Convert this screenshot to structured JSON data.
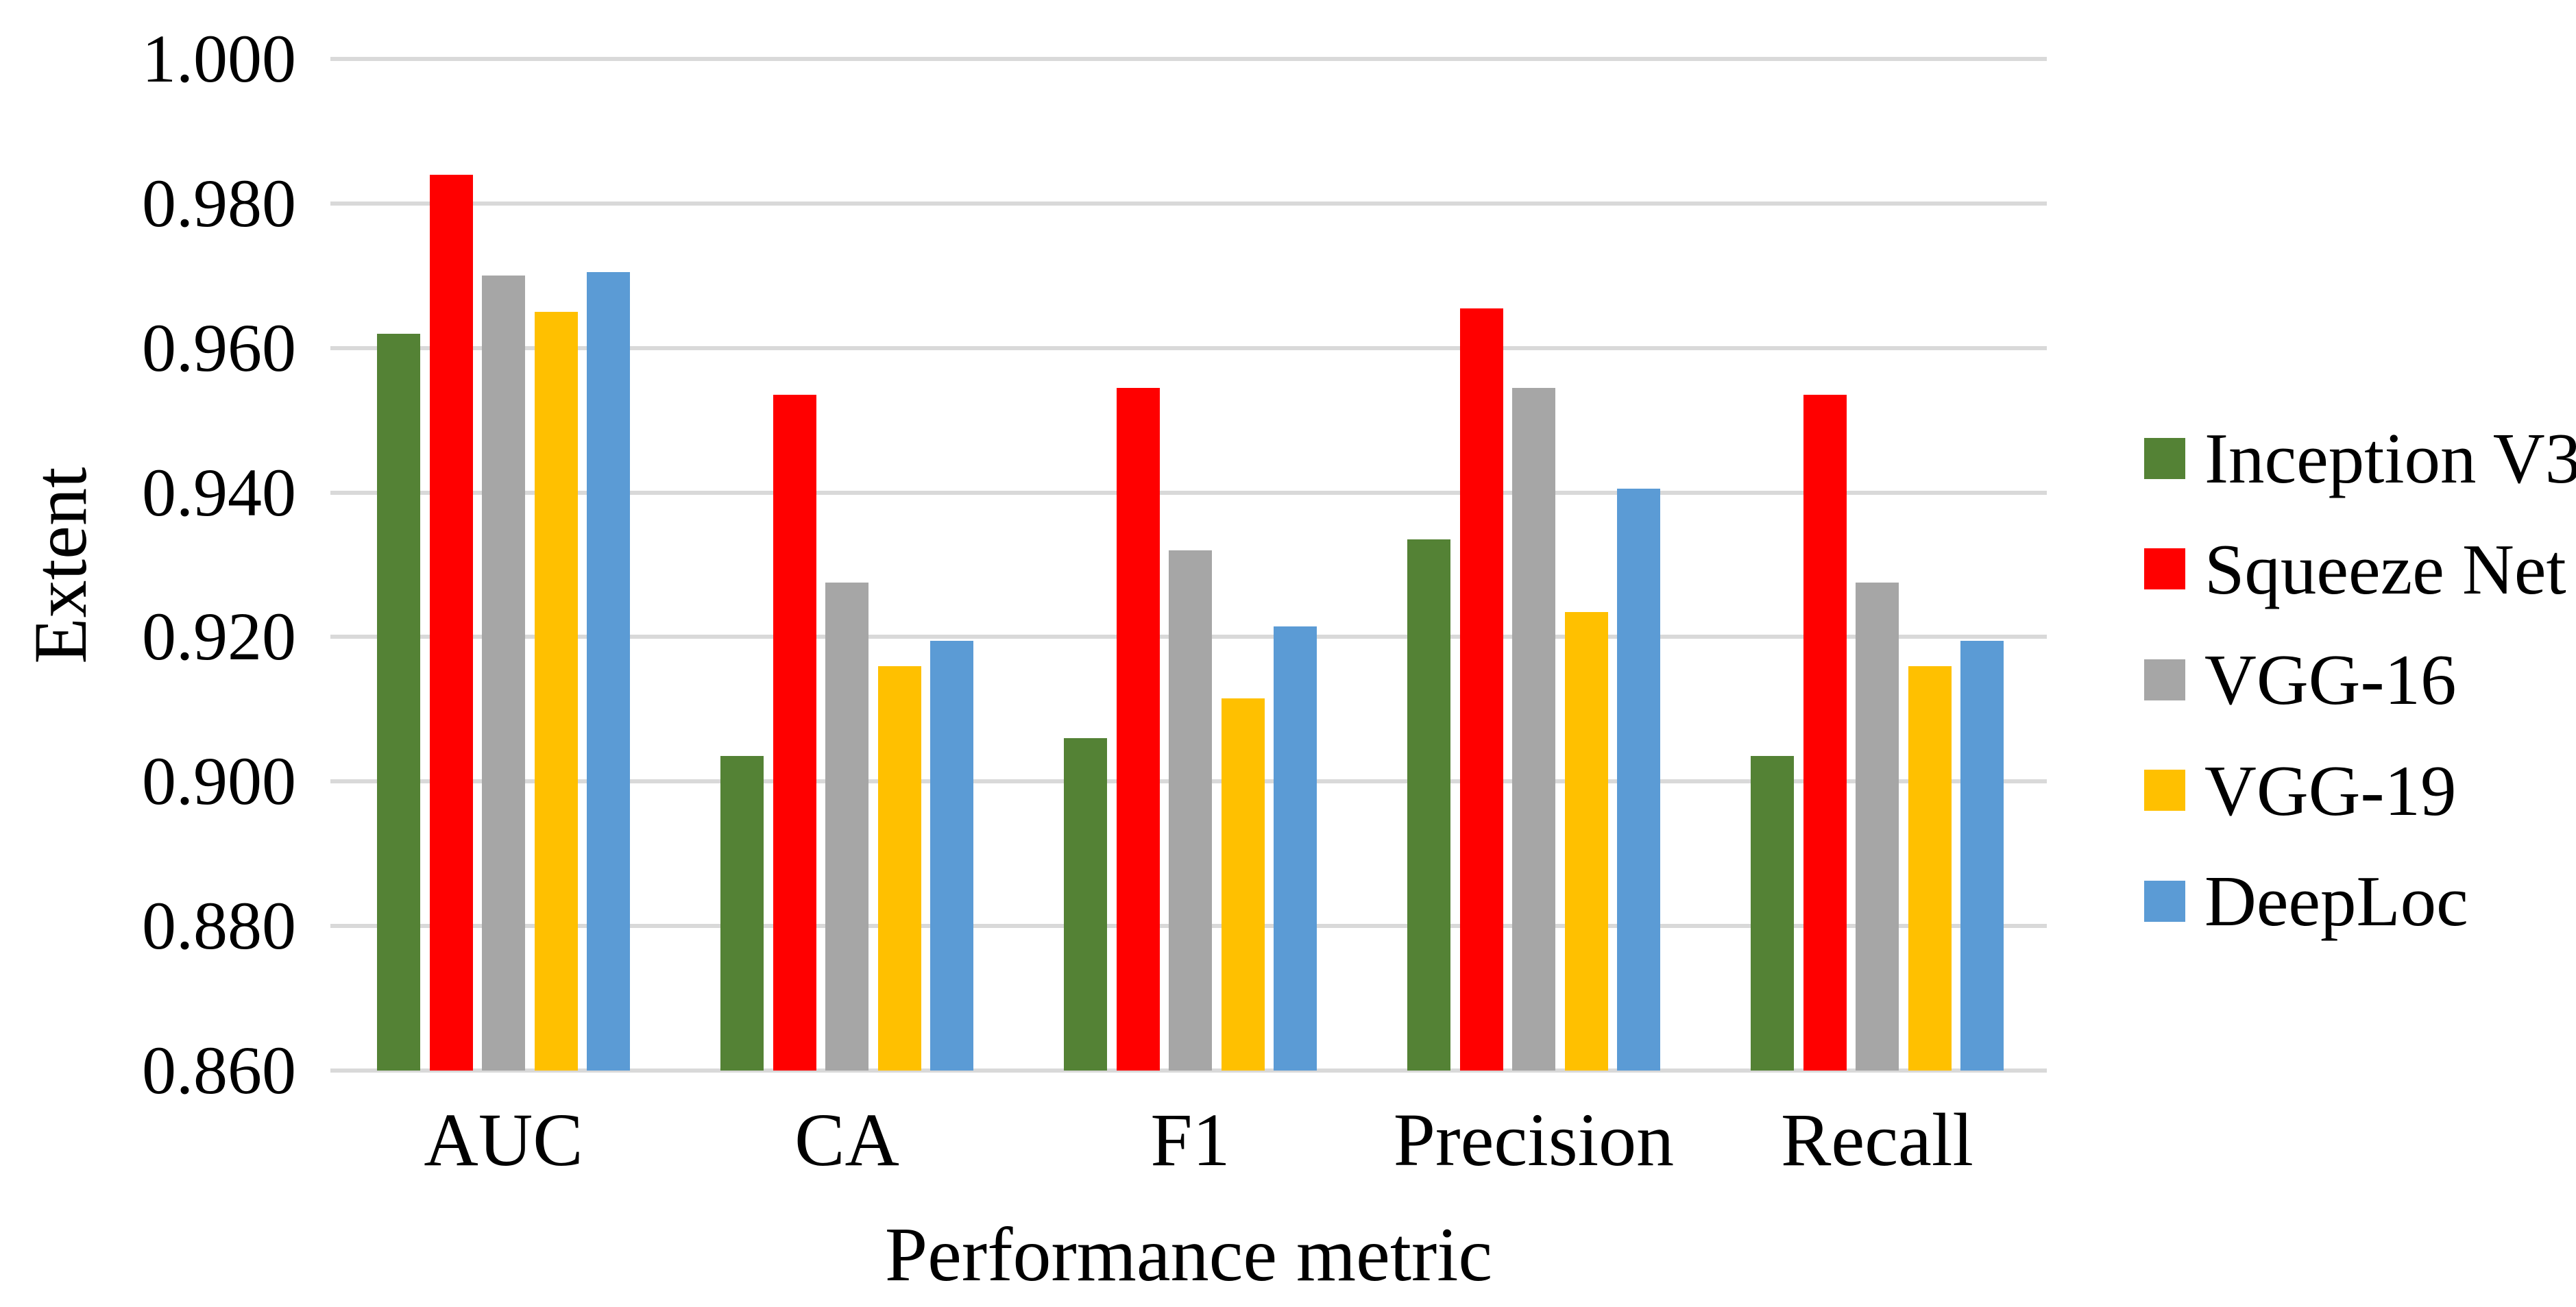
{
  "chart_data": {
    "type": "bar",
    "title": "",
    "xlabel": "Performance metric",
    "ylabel": "Extent",
    "categories": [
      "AUC",
      "CA",
      "F1",
      "Precision",
      "Recall"
    ],
    "series": [
      {
        "name": "Inception V3",
        "color": "#548235",
        "values": [
          0.962,
          0.9035,
          0.906,
          0.9335,
          0.9035
        ]
      },
      {
        "name": "Squeeze Net",
        "color": "#FF0000",
        "values": [
          0.984,
          0.9535,
          0.9545,
          0.9655,
          0.9535
        ]
      },
      {
        "name": "VGG-16",
        "color": "#A6A6A6",
        "values": [
          0.97,
          0.9275,
          0.932,
          0.9545,
          0.9275
        ]
      },
      {
        "name": "VGG-19",
        "color": "#FFC000",
        "values": [
          0.965,
          0.916,
          0.9115,
          0.9235,
          0.916
        ]
      },
      {
        "name": "DeepLoc",
        "color": "#5B9BD5",
        "values": [
          0.9705,
          0.9195,
          0.9215,
          0.9405,
          0.9195
        ]
      }
    ],
    "ylim": [
      0.86,
      1.0
    ],
    "ytick_step": 0.02,
    "ytick_labels": [
      "0.860",
      "0.880",
      "0.900",
      "0.920",
      "0.940",
      "0.960",
      "0.980",
      "1.000"
    ],
    "grid": true,
    "gridline_color": "#D9D9D9",
    "legend_position": "right"
  }
}
